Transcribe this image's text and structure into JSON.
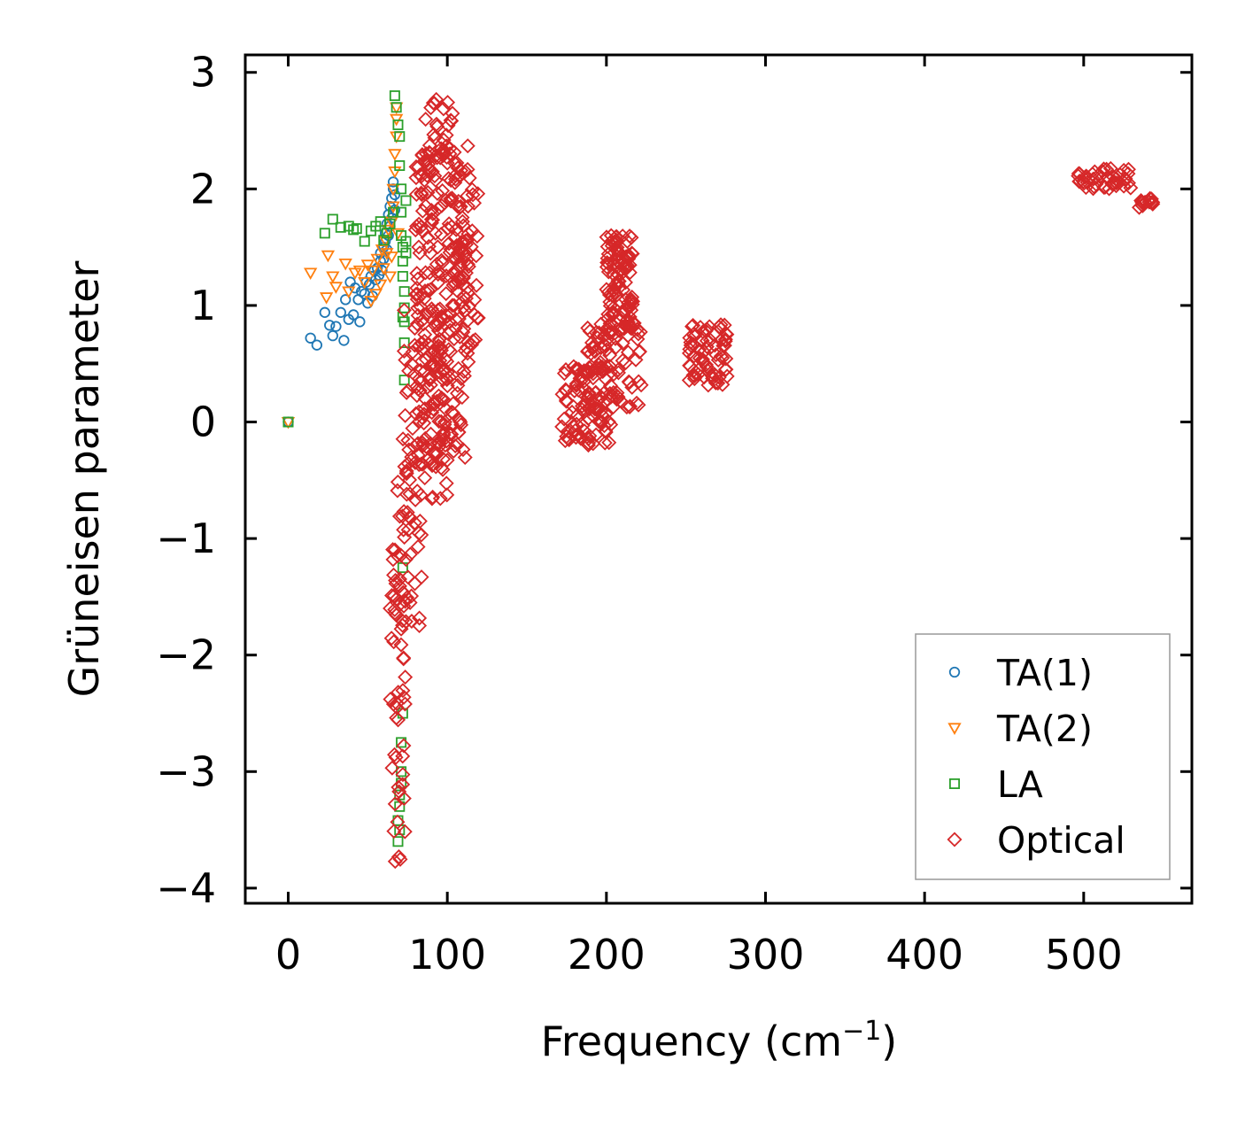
{
  "chart_data": {
    "type": "scatter",
    "xlabel": "Frequency (cm",
    "xlabel_sup": "−1",
    "xlabel_close": ")",
    "ylabel": "Grüneisen parameter",
    "xlim": [
      -27,
      568
    ],
    "ylim": [
      -4.13,
      3.15
    ],
    "xticks": [
      0,
      100,
      200,
      300,
      400,
      500
    ],
    "xtick_labels": [
      "0",
      "100",
      "200",
      "300",
      "400",
      "500"
    ],
    "yticks": [
      -4,
      -3,
      -2,
      -1,
      0,
      1,
      2,
      3
    ],
    "ytick_labels": [
      "−4",
      "−3",
      "−2",
      "−1",
      "0",
      "1",
      "2",
      "3"
    ],
    "legend_position": "lower-right",
    "series": [
      {
        "name": "TA(1)",
        "marker": "circle",
        "color": "#1f77b4",
        "x": [
          0,
          14,
          18,
          23,
          26,
          28,
          30,
          33,
          35,
          36,
          38,
          39,
          41,
          42,
          44,
          45,
          46,
          48,
          49,
          50,
          51,
          52,
          53,
          54,
          55,
          56,
          57,
          58,
          58,
          59,
          60,
          60,
          61,
          61,
          62,
          62,
          63,
          63,
          64,
          64,
          65,
          65,
          66,
          66,
          67,
          67
        ],
        "y": [
          0,
          0.72,
          0.66,
          0.94,
          0.83,
          0.74,
          0.82,
          0.94,
          0.7,
          1.05,
          0.88,
          1.2,
          0.92,
          1.15,
          1.05,
          0.86,
          1.12,
          1.1,
          1.2,
          1.02,
          1.18,
          1.25,
          1.08,
          1.3,
          1.22,
          1.32,
          1.26,
          1.38,
          1.45,
          1.3,
          1.5,
          1.4,
          1.55,
          1.62,
          1.48,
          1.7,
          1.6,
          1.78,
          1.85,
          1.68,
          1.92,
          1.75,
          2.0,
          2.06,
          1.82,
          1.95
        ]
      },
      {
        "name": "TA(2)",
        "marker": "triangle_down",
        "color": "#ff7f0e",
        "x": [
          0,
          14,
          24,
          25,
          28,
          30,
          36,
          38,
          42,
          45,
          48,
          50,
          52,
          53,
          55,
          56,
          58,
          59,
          60,
          61,
          62,
          63,
          64,
          65,
          65,
          66,
          66,
          67,
          67,
          68,
          68,
          68,
          69
        ],
        "y": [
          0,
          1.28,
          1.07,
          1.43,
          1.25,
          1.16,
          1.36,
          1.12,
          1.28,
          1.3,
          1.2,
          1.35,
          1.04,
          1.3,
          1.1,
          1.4,
          1.18,
          1.48,
          1.32,
          1.56,
          1.45,
          1.65,
          1.25,
          1.72,
          1.42,
          1.85,
          2.0,
          2.15,
          2.3,
          2.45,
          2.6,
          2.7,
          1.62
        ]
      },
      {
        "name": "LA",
        "marker": "square",
        "color": "#2ca02c",
        "x": [
          0,
          23,
          28,
          33,
          38,
          41,
          43,
          48,
          52,
          55,
          58,
          60,
          62,
          64,
          66,
          67,
          68,
          69,
          70,
          70,
          71,
          71,
          71,
          72,
          72,
          72,
          73,
          73,
          73,
          73,
          74,
          74,
          69,
          70,
          70,
          71,
          71,
          72,
          72,
          73,
          69,
          70,
          71,
          72,
          74
        ],
        "y": [
          0,
          1.62,
          1.74,
          1.67,
          1.68,
          1.65,
          1.66,
          1.55,
          1.64,
          1.68,
          1.72,
          1.56,
          1.62,
          1.7,
          1.8,
          2.8,
          2.7,
          2.55,
          2.45,
          2.2,
          2.0,
          1.8,
          1.6,
          1.5,
          1.38,
          1.25,
          1.12,
          0.98,
          0.86,
          0.36,
          1.45,
          1.55,
          -3.6,
          -3.5,
          -3.3,
          -3.1,
          -2.75,
          -2.5,
          -1.25,
          0.68,
          -3.42,
          -3.2,
          -3.0,
          0.9,
          1.9
        ]
      },
      {
        "name": "Optical",
        "marker": "diamond",
        "color": "#d62728",
        "clusters": [
          {
            "fmin": 64,
            "fmax": 74,
            "gmin": -3.8,
            "gmax": -0.5,
            "n": 60
          },
          {
            "fmin": 70,
            "fmax": 84,
            "gmin": -1.9,
            "gmax": -0.3,
            "n": 30
          },
          {
            "fmin": 72,
            "fmax": 100,
            "gmin": -0.7,
            "gmax": 1.0,
            "n": 90
          },
          {
            "fmin": 80,
            "fmax": 114,
            "gmin": -0.4,
            "gmax": 2.4,
            "n": 230
          },
          {
            "fmin": 86,
            "fmax": 104,
            "gmin": 2.2,
            "gmax": 2.78,
            "n": 30
          },
          {
            "fmin": 100,
            "fmax": 120,
            "gmin": 0.6,
            "gmax": 2.0,
            "n": 60
          },
          {
            "fmin": 172,
            "fmax": 204,
            "gmin": -0.2,
            "gmax": 0.5,
            "n": 90
          },
          {
            "fmin": 188,
            "fmax": 222,
            "gmin": 0.1,
            "gmax": 0.9,
            "n": 80
          },
          {
            "fmin": 200,
            "fmax": 218,
            "gmin": 0.7,
            "gmax": 1.6,
            "n": 110
          },
          {
            "fmin": 252,
            "fmax": 276,
            "gmin": 0.3,
            "gmax": 0.85,
            "n": 70
          },
          {
            "fmin": 496,
            "fmax": 530,
            "gmin": 2.0,
            "gmax": 2.18,
            "n": 45
          },
          {
            "fmin": 534,
            "fmax": 544,
            "gmin": 1.84,
            "gmax": 1.92,
            "n": 12
          }
        ]
      }
    ]
  }
}
